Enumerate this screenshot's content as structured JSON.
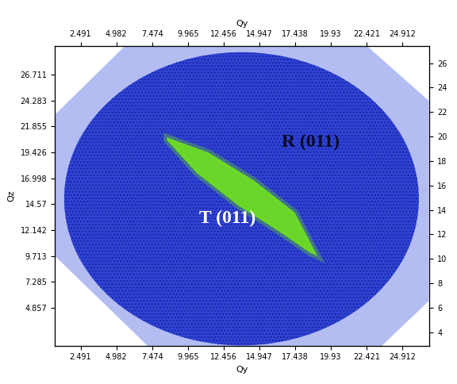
{
  "chart_data": {
    "type": "map",
    "x_label": "Qy",
    "y_label": "Qz",
    "xlim": [
      0.7,
      26.8
    ],
    "xticks": [
      2.491,
      4.982,
      7.474,
      9.965,
      12.456,
      14.947,
      17.438,
      19.93,
      22.421,
      24.912
    ],
    "ylim": [
      1.3,
      29.4
    ],
    "yticks": [
      4.857,
      7.285,
      9.713,
      12.142,
      14.57,
      16.998,
      19.426,
      21.855,
      24.283,
      26.711
    ],
    "y2lim": [
      2.9,
      27.4
    ],
    "y2ticks": [
      4,
      6,
      8,
      10,
      12,
      14,
      16,
      18,
      20,
      22,
      24,
      26
    ],
    "coverage": {
      "x": [
        0.76,
        5.63,
        22.39,
        26.7,
        26.7,
        23.43,
        7.2,
        0.76
      ],
      "y": [
        22.96,
        29.4,
        29.4,
        24.25,
        5.5,
        1.3,
        1.3,
        9.71
      ],
      "color": "#b3bdf2"
    },
    "region": {
      "center": [
        13.7,
        15.07
      ],
      "width": 24.7,
      "height": 27.5,
      "color": "#2f43d4"
    },
    "streak": {
      "x": [
        8.51,
        11.39,
        14.53,
        17.41,
        18.98,
        18.46,
        16.37,
        13.49,
        10.61,
        8.51
      ],
      "y": [
        20.83,
        19.41,
        16.82,
        13.78,
        9.71,
        10.03,
        11.97,
        14.43,
        17.47,
        20.57
      ],
      "color": "#6fe01f"
    },
    "annotations": [
      {
        "text": "R (011)",
        "x": 18.5,
        "y": 20.4,
        "color": "#0a0a2a"
      },
      {
        "text": "T (011)",
        "x": 12.7,
        "y": 13.2,
        "color": "#ffffff"
      }
    ]
  }
}
